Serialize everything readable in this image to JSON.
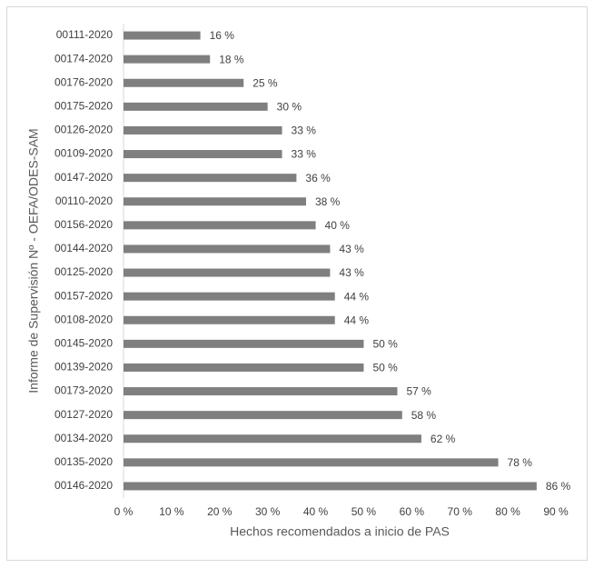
{
  "chart_data": {
    "type": "bar",
    "orientation": "horizontal",
    "x_label": "Hechos recomendados a inicio de PAS",
    "y_label": "Informe de Supervisión Nº - OEFA/ODES-SAM",
    "categories": [
      "00111-2020",
      "00174-2020",
      "00176-2020",
      "00175-2020",
      "00126-2020",
      "00109-2020",
      "00147-2020",
      "00110-2020",
      "00156-2020",
      "00144-2020",
      "00125-2020",
      "00157-2020",
      "00108-2020",
      "00145-2020",
      "00139-2020",
      "00173-2020",
      "00127-2020",
      "00134-2020",
      "00135-2020",
      "00146-2020"
    ],
    "values": [
      16,
      18,
      25,
      30,
      33,
      33,
      36,
      38,
      40,
      43,
      43,
      44,
      44,
      50,
      50,
      57,
      58,
      62,
      78,
      86
    ],
    "value_labels": [
      "16 %",
      "18 %",
      "25 %",
      "30 %",
      "33 %",
      "33 %",
      "36 %",
      "38 %",
      "40 %",
      "43 %",
      "43 %",
      "44 %",
      "44 %",
      "50 %",
      "50 %",
      "57 %",
      "58 %",
      "62 %",
      "78 %",
      "86 %"
    ],
    "color": "#7f7f7f",
    "xlim": [
      0,
      90
    ],
    "xticks": [
      {
        "value": 0,
        "label": "0 %"
      },
      {
        "value": 10,
        "label": "10 %"
      },
      {
        "value": 20,
        "label": "20 %"
      },
      {
        "value": 30,
        "label": "30 %"
      },
      {
        "value": 40,
        "label": "40 %"
      },
      {
        "value": 50,
        "label": "50 %"
      },
      {
        "value": 60,
        "label": "60 %"
      },
      {
        "value": 70,
        "label": "70 %"
      },
      {
        "value": 80,
        "label": "80 %"
      },
      {
        "value": 90,
        "label": "90 %"
      }
    ],
    "grid": false
  }
}
